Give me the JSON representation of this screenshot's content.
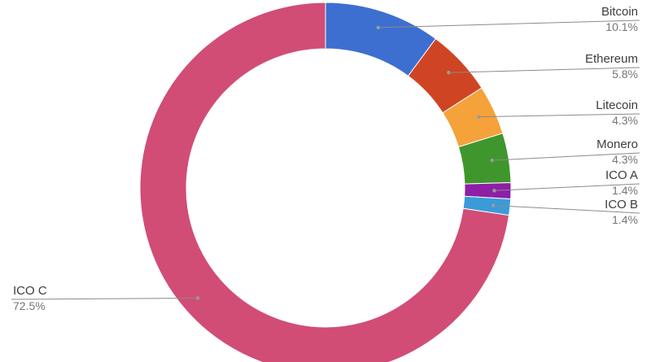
{
  "chart_data": {
    "type": "pie",
    "donut": true,
    "legend": "none (labels beside slices)",
    "slices": [
      {
        "label": "Bitcoin",
        "value": 10.1,
        "display": "10.1%",
        "color": "#3d6fd1"
      },
      {
        "label": "Ethereum",
        "value": 5.8,
        "display": "5.8%",
        "color": "#cf4524"
      },
      {
        "label": "Litecoin",
        "value": 4.3,
        "display": "4.3%",
        "color": "#f5a23a"
      },
      {
        "label": "Monero",
        "value": 4.3,
        "display": "4.3%",
        "color": "#3f962d"
      },
      {
        "label": "ICO A",
        "value": 1.4,
        "display": "1.4%",
        "color": "#8e1fa6"
      },
      {
        "label": "ICO B",
        "value": 1.4,
        "display": "1.4%",
        "color": "#3a9bd8"
      },
      {
        "label": "ICO C",
        "value": 72.5,
        "display": "72.5%",
        "color": "#d14d75"
      }
    ]
  }
}
